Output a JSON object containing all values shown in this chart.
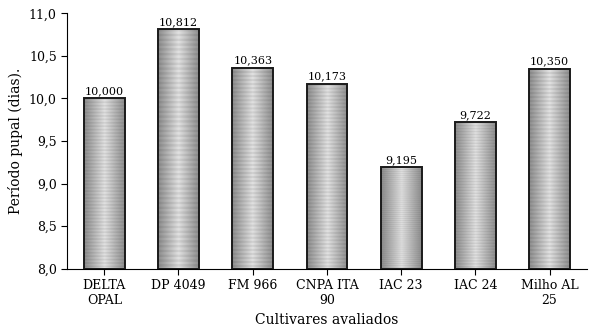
{
  "categories": [
    "DELTA\nOPAL",
    "DP 4049",
    "FM 966",
    "CNPA ITA\n90",
    "IAC 23",
    "IAC 24",
    "Milho AL\n25"
  ],
  "values": [
    10.0,
    10.812,
    10.363,
    10.173,
    9.195,
    9.722,
    10.35
  ],
  "labels": [
    "10,000",
    "10,812",
    "10,363",
    "10,173",
    "9,195",
    "9,722",
    "10,350"
  ],
  "ylim": [
    8.0,
    11.0
  ],
  "yticks": [
    8.0,
    8.5,
    9.0,
    9.5,
    10.0,
    10.5,
    11.0
  ],
  "ytick_labels": [
    "8,0",
    "8,5",
    "9,0",
    "9,5",
    "10,0",
    "10,5",
    "11,0"
  ],
  "ylabel": "Período pupal (dias).",
  "xlabel": "Cultivares avaliados",
  "bar_edge_color": "#1a1a1a",
  "figure_background": "#ffffff",
  "label_fontsize": 8.0,
  "axis_fontsize": 10,
  "tick_fontsize": 9,
  "bar_width": 0.55,
  "ybase": 8.0
}
